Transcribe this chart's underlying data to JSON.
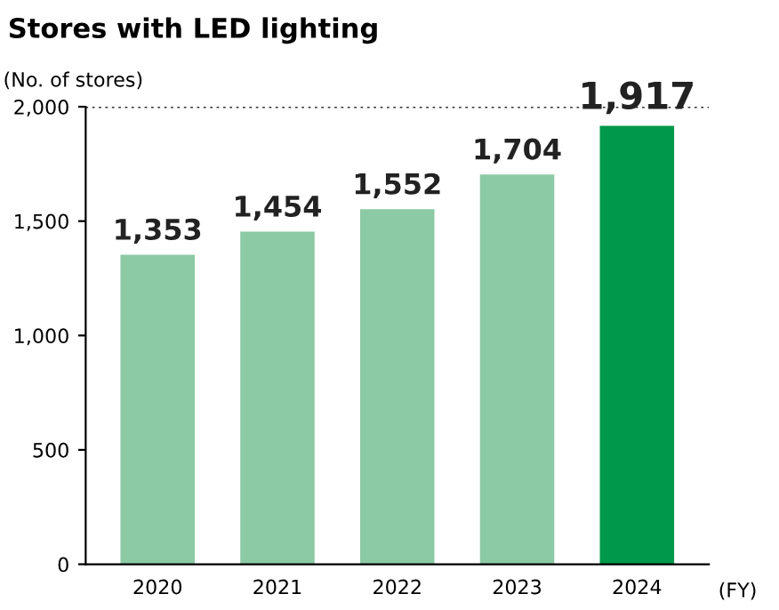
{
  "chart_data": {
    "type": "bar",
    "title": "Stores with LED lighting",
    "ylabel": "(No. of stores)",
    "xlabel": "(FY)",
    "categories": [
      "2020",
      "2021",
      "2022",
      "2023",
      "2024"
    ],
    "values": [
      1353,
      1454,
      1552,
      1704,
      1917
    ],
    "colors": [
      "#8cc9a5",
      "#8cc9a5",
      "#8cc9a5",
      "#8cc9a5",
      "#00984a"
    ],
    "value_labels": [
      "1,353",
      "1,454",
      "1,552",
      "1,704",
      "1,917"
    ],
    "ylim": [
      0,
      2000
    ],
    "yticks": [
      {
        "value": 0,
        "label": "0"
      },
      {
        "value": 500,
        "label": "500"
      },
      {
        "value": 1000,
        "label": "1,000"
      },
      {
        "value": 1500,
        "label": "1,500"
      },
      {
        "value": 2000,
        "label": "2,000"
      }
    ],
    "ref_lines": [
      {
        "axis": "y",
        "value": 2000,
        "label": null,
        "color": "#333333",
        "line_style": "dotted"
      }
    ],
    "grid": false,
    "legend": false
  }
}
